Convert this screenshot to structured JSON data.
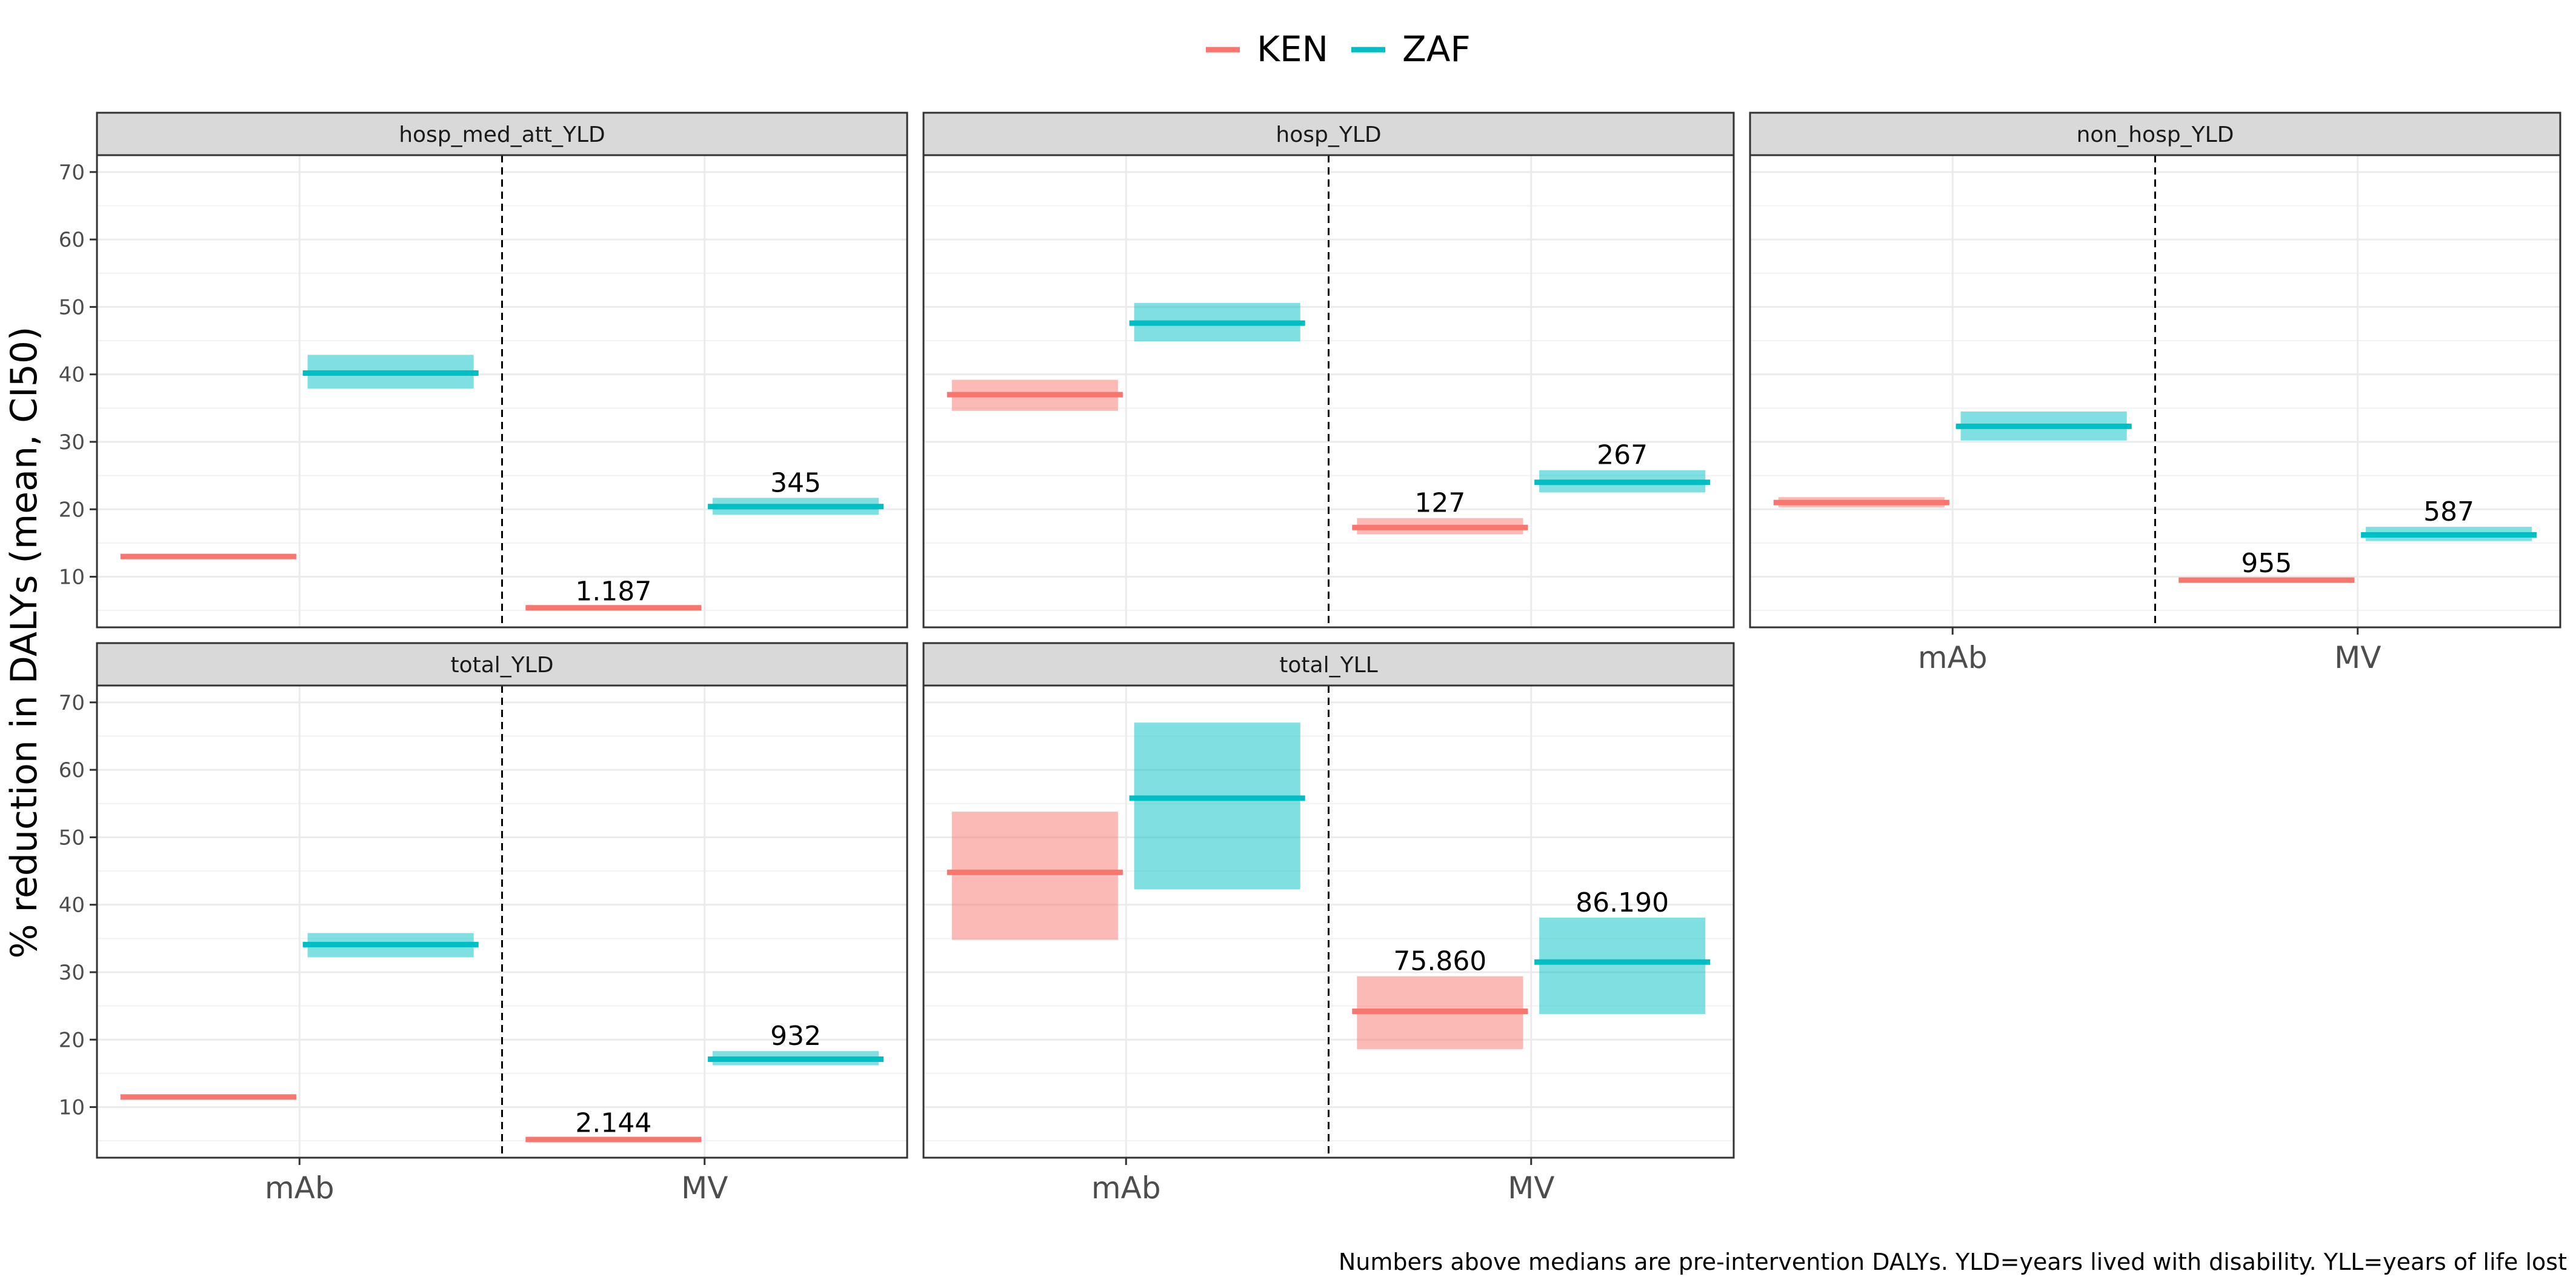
{
  "chart_data": {
    "type": "faceted-crossbar",
    "ylabel": "% reduction in DALYs (mean, CI50)",
    "caption": "Numbers above medians are pre-intervention DALYs. YLD=years lived with disability. YLL=years of life lost",
    "categories": [
      "mAb",
      "MV"
    ],
    "yticks": [
      10,
      20,
      30,
      40,
      50,
      60,
      70
    ],
    "ylim": [
      2.5,
      72.5
    ],
    "legend_position": "top",
    "grid": true,
    "series": [
      {
        "name": "KEN",
        "color": "#F8766D"
      },
      {
        "name": "ZAF",
        "color": "#00BFC4"
      }
    ],
    "panels": [
      {
        "title": "hosp_med_att_YLD",
        "data": [
          {
            "category": "mAb",
            "series": "KEN",
            "mean": 13.0,
            "lo": 12.6,
            "hi": 13.4,
            "label": ""
          },
          {
            "category": "mAb",
            "series": "ZAF",
            "mean": 40.2,
            "lo": 37.9,
            "hi": 42.9,
            "label": ""
          },
          {
            "category": "MV",
            "series": "KEN",
            "mean": 5.4,
            "lo": 5.2,
            "hi": 5.6,
            "label": "1.187"
          },
          {
            "category": "MV",
            "series": "ZAF",
            "mean": 20.4,
            "lo": 19.2,
            "hi": 21.7,
            "label": "345"
          }
        ]
      },
      {
        "title": "hosp_YLD",
        "data": [
          {
            "category": "mAb",
            "series": "KEN",
            "mean": 37.0,
            "lo": 34.6,
            "hi": 39.2,
            "label": ""
          },
          {
            "category": "mAb",
            "series": "ZAF",
            "mean": 47.6,
            "lo": 44.9,
            "hi": 50.6,
            "label": ""
          },
          {
            "category": "MV",
            "series": "KEN",
            "mean": 17.3,
            "lo": 16.3,
            "hi": 18.7,
            "label": "127"
          },
          {
            "category": "MV",
            "series": "ZAF",
            "mean": 24.0,
            "lo": 22.5,
            "hi": 25.8,
            "label": "267"
          }
        ]
      },
      {
        "title": "non_hosp_YLD",
        "data": [
          {
            "category": "mAb",
            "series": "KEN",
            "mean": 21.0,
            "lo": 20.3,
            "hi": 21.8,
            "label": ""
          },
          {
            "category": "mAb",
            "series": "ZAF",
            "mean": 32.3,
            "lo": 30.2,
            "hi": 34.5,
            "label": ""
          },
          {
            "category": "MV",
            "series": "KEN",
            "mean": 9.5,
            "lo": 9.2,
            "hi": 9.8,
            "label": "955"
          },
          {
            "category": "MV",
            "series": "ZAF",
            "mean": 16.2,
            "lo": 15.3,
            "hi": 17.4,
            "label": "587"
          }
        ]
      },
      {
        "title": "total_YLD",
        "data": [
          {
            "category": "mAb",
            "series": "KEN",
            "mean": 11.5,
            "lo": 11.2,
            "hi": 11.8,
            "label": ""
          },
          {
            "category": "mAb",
            "series": "ZAF",
            "mean": 34.1,
            "lo": 32.2,
            "hi": 35.8,
            "label": ""
          },
          {
            "category": "MV",
            "series": "KEN",
            "mean": 5.2,
            "lo": 5.0,
            "hi": 5.4,
            "label": "2.144"
          },
          {
            "category": "MV",
            "series": "ZAF",
            "mean": 17.1,
            "lo": 16.2,
            "hi": 18.3,
            "label": "932"
          }
        ]
      },
      {
        "title": "total_YLL",
        "data": [
          {
            "category": "mAb",
            "series": "KEN",
            "mean": 44.8,
            "lo": 34.8,
            "hi": 53.8,
            "label": ""
          },
          {
            "category": "mAb",
            "series": "ZAF",
            "mean": 55.8,
            "lo": 42.3,
            "hi": 67.0,
            "label": ""
          },
          {
            "category": "MV",
            "series": "KEN",
            "mean": 24.2,
            "lo": 18.6,
            "hi": 29.4,
            "label": "75.860"
          },
          {
            "category": "MV",
            "series": "ZAF",
            "mean": 31.5,
            "lo": 23.8,
            "hi": 38.1,
            "label": "86.190"
          }
        ]
      }
    ]
  }
}
